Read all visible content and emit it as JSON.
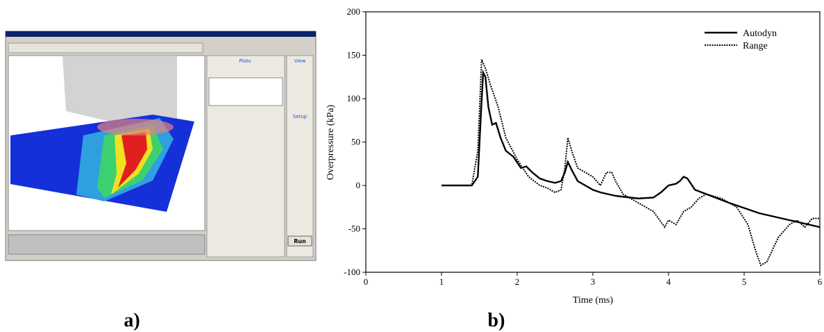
{
  "figure": {
    "panel_a_label": "a)",
    "panel_b_label": "b)"
  },
  "screenshot": {
    "plots_tab": "Plots",
    "view_tab": "View",
    "setup_tab": "Setup",
    "run_button": "Run"
  },
  "chart_data": {
    "type": "line",
    "x_label": "Time (ms)",
    "y_label": "Overpressure (kPa)",
    "xlim": [
      0,
      6
    ],
    "xticks": [
      0,
      1,
      2,
      3,
      4,
      5,
      6
    ],
    "ylim": [
      -100,
      200
    ],
    "yticks": [
      -100,
      -50,
      0,
      50,
      100,
      150,
      200
    ],
    "legend": "upper-right",
    "series": [
      {
        "name": "Autodyn",
        "color": "#000000",
        "dash": "solid",
        "x": [
          1.0,
          1.4,
          1.48,
          1.52,
          1.55,
          1.58,
          1.62,
          1.67,
          1.72,
          1.78,
          1.85,
          1.95,
          2.05,
          2.12,
          2.2,
          2.3,
          2.4,
          2.5,
          2.58,
          2.63,
          2.67,
          2.72,
          2.8,
          2.9,
          3.0,
          3.1,
          3.3,
          3.6,
          3.8,
          3.9,
          4.0,
          4.1,
          4.15,
          4.2,
          4.25,
          4.35,
          4.5,
          4.8,
          5.2,
          5.6,
          6.0
        ],
        "values": [
          0,
          0,
          10,
          80,
          130,
          125,
          90,
          70,
          72,
          55,
          40,
          33,
          20,
          22,
          15,
          8,
          5,
          3,
          5,
          15,
          27,
          18,
          5,
          0,
          -5,
          -8,
          -12,
          -15,
          -14,
          -8,
          0,
          2,
          5,
          10,
          8,
          -5,
          -10,
          -20,
          -32,
          -40,
          -48
        ]
      },
      {
        "name": "Range",
        "color": "#000000",
        "dash": "dotted",
        "x": [
          1.0,
          1.4,
          1.48,
          1.53,
          1.58,
          1.65,
          1.75,
          1.85,
          2.0,
          2.15,
          2.3,
          2.4,
          2.5,
          2.58,
          2.63,
          2.67,
          2.72,
          2.8,
          2.9,
          3.0,
          3.1,
          3.18,
          3.25,
          3.3,
          3.4,
          3.6,
          3.8,
          3.95,
          4.0,
          4.1,
          4.2,
          4.3,
          4.4,
          4.5,
          4.7,
          4.9,
          5.05,
          5.15,
          5.22,
          5.3,
          5.45,
          5.6,
          5.7,
          5.8,
          5.9,
          6.0
        ],
        "values": [
          0,
          0,
          40,
          145,
          135,
          115,
          90,
          55,
          30,
          10,
          0,
          -3,
          -8,
          -5,
          20,
          55,
          40,
          20,
          15,
          10,
          0,
          15,
          15,
          5,
          -10,
          -20,
          -30,
          -48,
          -40,
          -45,
          -30,
          -25,
          -15,
          -10,
          -15,
          -25,
          -45,
          -75,
          -92,
          -88,
          -60,
          -45,
          -40,
          -48,
          -38,
          -38
        ]
      }
    ]
  }
}
